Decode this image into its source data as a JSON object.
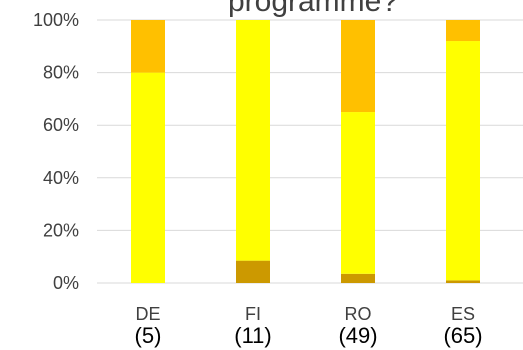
{
  "chart_data": {
    "type": "bar",
    "stacked": true,
    "title": "programme?",
    "categories": [
      "DE",
      "FI",
      "RO",
      "ES"
    ],
    "category_counts": [
      "(5)",
      "(11)",
      "(49)",
      "(65)"
    ],
    "ylim": [
      0,
      100
    ],
    "y_ticks": [
      "0%",
      "20%",
      "40%",
      "60%",
      "80%",
      "100%"
    ],
    "grid": true,
    "series": [
      {
        "values": [
          0,
          8.5,
          3.5,
          1
        ],
        "color": "#cc9900"
      },
      {
        "values": [
          80,
          91.5,
          61.5,
          91
        ],
        "color": "#ffff00"
      },
      {
        "values": [
          20,
          0,
          35,
          8
        ],
        "color": "#ffc000"
      }
    ]
  }
}
